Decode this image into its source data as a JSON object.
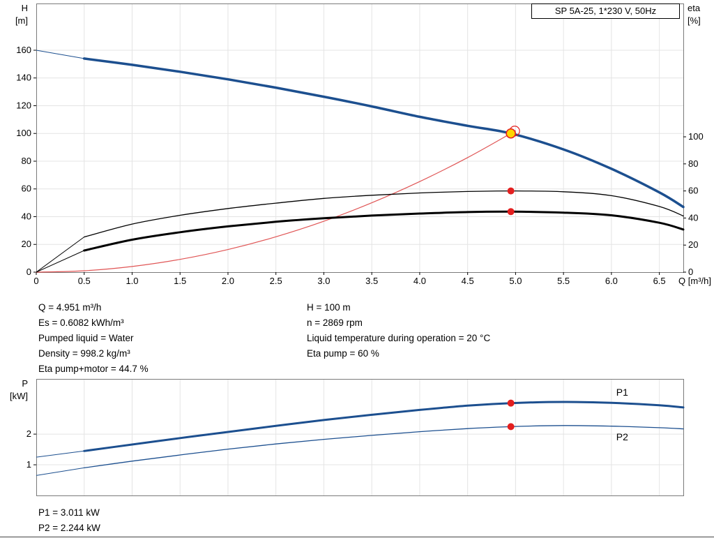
{
  "title_box": "SP 5A-25, 1*230 V, 50Hz",
  "duty_info": {
    "left": [
      "Q = 4.951 m³/h",
      "Es = 0.6082 kWh/m³",
      "Pumped liquid = Water",
      "Density = 998.2 kg/m³",
      "Eta pump+motor = 44.7 %"
    ],
    "right": [
      "H = 100 m",
      "n = 2869 rpm",
      "Liquid temperature during operation = 20 °C",
      "Eta pump = 60 %"
    ],
    "power": [
      "P1 = 3.011 kW",
      "P2 = 2.244 kW"
    ]
  },
  "colors": {
    "curve_blue": "#1c4f8f",
    "label_blue": "#2e6db4",
    "red": "#e31f1f",
    "system_red": "#e05555",
    "yellow": "#ffd500",
    "grid": "#e4e4e4",
    "border": "#7a7a7a",
    "black": "#000000"
  },
  "chart_data": [
    {
      "type": "line",
      "title": "SP 5A-25, 1*230 V, 50Hz",
      "xlabel": "Q [m³/h]",
      "xlim": [
        0,
        6.75
      ],
      "x_tick_values": [
        0,
        0.5,
        1,
        1.5,
        2,
        2.5,
        3,
        3.5,
        4,
        4.5,
        5,
        5.5,
        6,
        6.5
      ],
      "x_tick_labels": [
        "0",
        "0.5",
        "1.0",
        "1.5",
        "2.0",
        "2.5",
        "3.0",
        "3.5",
        "4.0",
        "4.5",
        "5.0",
        "5.5",
        "6.0",
        "6.5"
      ],
      "left_axis": {
        "label_lines": [
          "H",
          "[m]"
        ],
        "ticks": [
          0,
          20,
          40,
          60,
          80,
          100,
          120,
          140,
          160
        ],
        "lim": [
          0,
          193.7
        ]
      },
      "right_axis": {
        "label_lines": [
          "eta",
          "[%]"
        ],
        "ticks": [
          0,
          20,
          40,
          60,
          80,
          100
        ],
        "lim": [
          0,
          198.5
        ]
      },
      "series": [
        {
          "name": "head-curve",
          "axis": "left",
          "color": "#1c4f8f",
          "width": 3.5,
          "lead_split": 1,
          "x": [
            0,
            0.5,
            1,
            1.5,
            2,
            2.5,
            3,
            3.5,
            4,
            4.5,
            4.951,
            5.5,
            6,
            6.5,
            6.75
          ],
          "y": [
            160,
            154,
            149.5,
            144.5,
            139,
            133,
            126.5,
            119.5,
            112,
            105.5,
            100,
            88.5,
            74.5,
            57.5,
            47
          ]
        },
        {
          "name": "system-curve",
          "axis": "left",
          "color": "#e05555",
          "width": 1.2,
          "lead_split": 0,
          "x": [
            0,
            0.5,
            1,
            1.5,
            2,
            2.5,
            3,
            3.5,
            4,
            4.5,
            4.951,
            4.99
          ],
          "y": [
            0,
            1,
            4.1,
            9.2,
            16.3,
            25.5,
            36.7,
            50,
            65.3,
            82.6,
            100,
            101.6
          ]
        },
        {
          "name": "eta-pump-curve",
          "axis": "right",
          "color": "#000000",
          "width": 1.3,
          "lead_split": 1,
          "x": [
            0,
            0.5,
            1,
            1.5,
            2,
            2.5,
            3,
            3.5,
            4,
            4.5,
            4.951,
            5.5,
            6,
            6.5,
            6.75
          ],
          "y": [
            0,
            26,
            35.5,
            42,
            47,
            51,
            54.5,
            56.8,
            58.5,
            59.6,
            60,
            59.4,
            56.5,
            48.5,
            41.5
          ]
        },
        {
          "name": "eta-pump-motor-curve",
          "axis": "right",
          "color": "#000000",
          "width": 3,
          "lead_split": 1,
          "x": [
            0,
            0.5,
            1,
            1.5,
            2,
            2.5,
            3,
            3.5,
            4,
            4.5,
            4.951,
            5.5,
            6,
            6.5,
            6.75
          ],
          "y": [
            0,
            16,
            24,
            29.5,
            33.8,
            37.2,
            39.8,
            41.8,
            43.3,
            44.4,
            44.7,
            44,
            42,
            36.5,
            31.5
          ]
        }
      ],
      "markers": [
        {
          "x": 4.951,
          "y": 100,
          "axis": "left",
          "style": "duty-point"
        },
        {
          "x": 4.951,
          "y": 60,
          "axis": "right",
          "style": "red-dot"
        },
        {
          "x": 4.951,
          "y": 44.7,
          "axis": "right",
          "style": "red-dot"
        }
      ]
    },
    {
      "type": "line",
      "xlabel": "",
      "xlim": [
        0,
        6.75
      ],
      "x_tick_values": [
        0.5,
        1,
        1.5,
        2,
        2.5,
        3,
        3.5,
        4,
        4.5,
        5,
        5.5,
        6,
        6.5
      ],
      "left_axis": {
        "label_lines": [
          "P",
          "[kW]"
        ],
        "ticks": [
          1,
          2
        ],
        "lim": [
          0,
          3.8
        ]
      },
      "series": [
        {
          "name": "p1-curve",
          "axis": "left",
          "color": "#1c4f8f",
          "width": 3,
          "lead_split": 1,
          "label": "P1",
          "label_pos": {
            "x": 6.05,
            "y": 3.25
          },
          "x": [
            0,
            0.5,
            1,
            1.5,
            2,
            2.5,
            3,
            3.5,
            4,
            4.5,
            4.951,
            5.5,
            6,
            6.5,
            6.75
          ],
          "y": [
            1.25,
            1.45,
            1.66,
            1.87,
            2.07,
            2.27,
            2.46,
            2.63,
            2.79,
            2.93,
            3.011,
            3.05,
            3.02,
            2.94,
            2.87
          ]
        },
        {
          "name": "p2-curve",
          "axis": "left",
          "color": "#1c4f8f",
          "width": 1.3,
          "lead_split": 1,
          "label": "P2",
          "label_pos": {
            "x": 6.05,
            "y": 1.8
          },
          "x": [
            0,
            0.5,
            1,
            1.5,
            2,
            2.5,
            3,
            3.5,
            4,
            4.5,
            4.951,
            5.5,
            6,
            6.5,
            6.75
          ],
          "y": [
            0.65,
            0.9,
            1.12,
            1.32,
            1.51,
            1.68,
            1.83,
            1.96,
            2.08,
            2.18,
            2.244,
            2.28,
            2.26,
            2.21,
            2.17
          ]
        }
      ],
      "markers": [
        {
          "x": 4.951,
          "y": 3.011,
          "axis": "left",
          "style": "red-dot"
        },
        {
          "x": 4.951,
          "y": 2.244,
          "axis": "left",
          "style": "red-dot"
        }
      ]
    }
  ]
}
